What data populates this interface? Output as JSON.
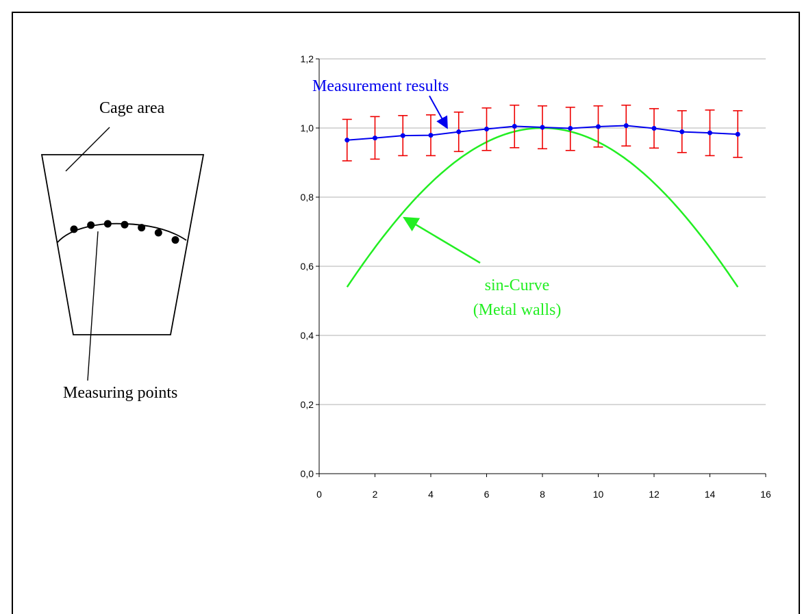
{
  "diagram": {
    "cage_label": "Cage area",
    "points_label": "Measuring points",
    "point_count": 7
  },
  "colors": {
    "measurement": "#0000ee",
    "error_bars": "#ee0000",
    "sin_curve": "#22ee22",
    "grid": "#b0b0b0",
    "axis": "#000000"
  },
  "chart_data": {
    "type": "line",
    "xlim": [
      0,
      16
    ],
    "ylim": [
      0,
      1.2
    ],
    "x_ticks": [
      "0",
      "2",
      "4",
      "6",
      "8",
      "10",
      "12",
      "14",
      "16"
    ],
    "y_ticks": [
      "0,0",
      "0,2",
      "0,4",
      "0,6",
      "0,8",
      "1,0",
      "1,2"
    ],
    "grid": "horizontal",
    "series": [
      {
        "name": "Measurement results",
        "x": [
          1,
          2,
          3,
          4,
          5,
          6,
          7,
          8,
          9,
          10,
          11,
          12,
          13,
          14,
          15
        ],
        "values": [
          0.965,
          0.971,
          0.978,
          0.979,
          0.989,
          0.997,
          1.005,
          1.002,
          0.999,
          1.004,
          1.007,
          0.999,
          0.989,
          0.986,
          0.982
        ],
        "error_low": [
          0.905,
          0.91,
          0.92,
          0.92,
          0.932,
          0.935,
          0.943,
          0.94,
          0.935,
          0.945,
          0.948,
          0.942,
          0.929,
          0.92,
          0.915
        ],
        "error_high": [
          1.025,
          1.033,
          1.036,
          1.038,
          1.046,
          1.058,
          1.066,
          1.064,
          1.06,
          1.064,
          1.066,
          1.056,
          1.05,
          1.052,
          1.05
        ]
      },
      {
        "name": "sin-Curve\n(Metal walls)",
        "function": "sin",
        "x_range": [
          1,
          15
        ],
        "peak_x": 8,
        "peak_y": 1.0,
        "end_y": 0.54
      }
    ],
    "annotations": {
      "measurement_label": "Measurement results",
      "sin_label_line1": "sin-Curve",
      "sin_label_line2": "(Metal walls)"
    }
  }
}
